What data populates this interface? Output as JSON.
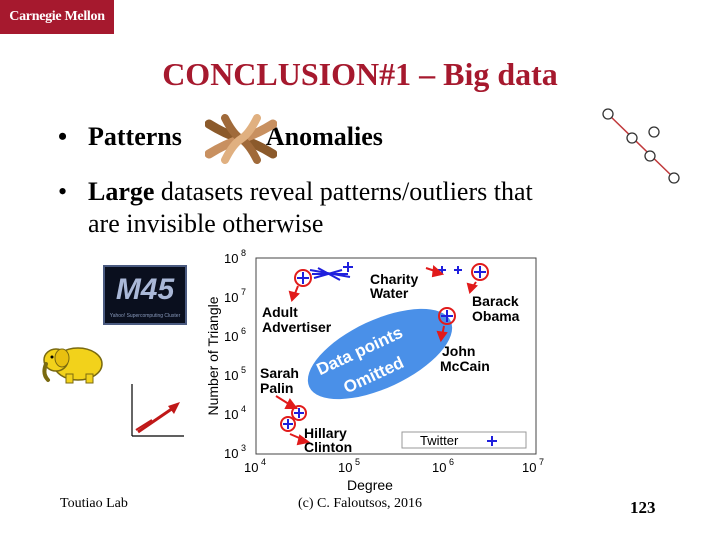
{
  "header": {
    "logo_text": "Carnegie Mellon",
    "brand_color": "#a6192e"
  },
  "slide": {
    "title": "CONCLUSION#1 – Big data",
    "bullet1": {
      "left": "Patterns",
      "right": "Anomalies"
    },
    "bullet2": {
      "bold": "Large",
      "rest": " datasets reveal patterns/outliers that",
      "line2": "are invisible otherwise"
    }
  },
  "images": {
    "m45_text": "M45",
    "m45_subtitle": "Yahoo! Supercomputing Cluster",
    "hands_icon": "interlocked-hands-icon",
    "elephant_icon": "hadoop-elephant-icon",
    "chain_icon": "chain-of-circles-icon"
  },
  "chart_data": {
    "type": "scatter",
    "xlabel": "Degree",
    "ylabel": "Number of Triangle",
    "x_log": true,
    "y_log": true,
    "xlim": [
      10000,
      10000000
    ],
    "ylim": [
      1000,
      100000000
    ],
    "xticks": [
      "10",
      "10",
      "10",
      "10"
    ],
    "xtick_exp": [
      "4",
      "5",
      "6",
      "7"
    ],
    "yticks": [
      "10",
      "10",
      "10",
      "10",
      "10",
      "10"
    ],
    "ytick_exp": [
      "3",
      "4",
      "5",
      "6",
      "7",
      "8"
    ],
    "annotations": {
      "charity_water": [
        "Charity",
        "Water"
      ],
      "barack_obama": [
        "Barack",
        "Obama"
      ],
      "adult_advertiser": [
        "Adult",
        "Advertiser"
      ],
      "john_mccain": [
        "John",
        "McCain"
      ],
      "sarah_palin": [
        "Sarah",
        "Palin"
      ],
      "hillary_clinton": [
        "Hillary",
        "Clinton"
      ],
      "omitted_line1": "Data points",
      "omitted_line2": "Omitted"
    },
    "legend": {
      "label": "Twitter",
      "position": "bottom-right"
    },
    "colors": {
      "points": "#1f1fdd",
      "highlight": "#e11b1b",
      "ellipse": "#4a90e8"
    }
  },
  "footer": {
    "left": "Toutiao Lab",
    "center": "(c) C. Faloutsos, 2016",
    "page": "123"
  }
}
